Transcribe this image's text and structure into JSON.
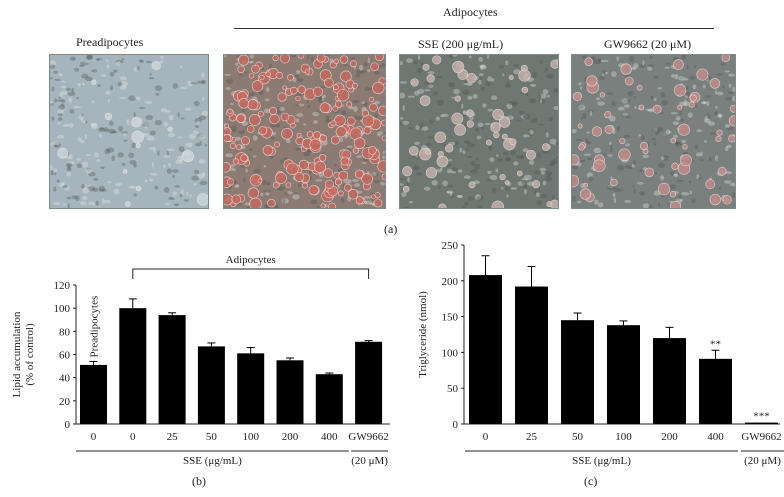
{
  "figure": {
    "panel_a": {
      "header": "Adipocytes",
      "labels": [
        "Preadipocytes",
        "SSE (200 μg/mL)",
        "GW9662 (20 μM)"
      ],
      "caption": "(a)",
      "images": [
        {
          "name": "preadipocytes-micrograph",
          "tint": "#a6b4bd",
          "stain": "#cfd8e0",
          "stain_density": 0.05
        },
        {
          "name": "adipocytes-micrograph",
          "tint": "#8b7b73",
          "stain": "#c8695f",
          "stain_density": 0.75
        },
        {
          "name": "sse-200-micrograph",
          "tint": "#6e7772",
          "stain": "#c9b2ad",
          "stain_density": 0.18
        },
        {
          "name": "gw9662-micrograph",
          "tint": "#7a807e",
          "stain": "#c48c88",
          "stain_density": 0.22
        }
      ]
    },
    "panel_b": {
      "caption": "(b)"
    },
    "panel_c": {
      "caption": "(c)"
    }
  },
  "chart_data": [
    {
      "type": "bar",
      "title": "",
      "ylabel": "Lipid accumulation (% of control)",
      "ylabel_lines": [
        "Lipid accumulation",
        "(% of control)"
      ],
      "ylim": [
        0,
        120
      ],
      "yticks": [
        0,
        20,
        40,
        60,
        80,
        100,
        120
      ],
      "categories": [
        "0",
        "0",
        "25",
        "50",
        "100",
        "200",
        "400",
        "GW9662"
      ],
      "values": [
        51,
        100,
        94,
        67,
        61,
        55,
        43,
        71
      ],
      "errors": [
        3,
        8,
        2,
        3,
        5,
        2,
        1,
        1
      ],
      "bar_annotation": {
        "index": 0,
        "text": "Preadipocytes"
      },
      "bracket": {
        "from": 1,
        "to": 7,
        "label": "Adipocytes"
      },
      "group_labels": [
        {
          "text": "SSE (μg/mL)",
          "from": 0,
          "to": 6
        },
        {
          "text": "(20 μM)",
          "from": 7,
          "to": 7
        }
      ],
      "color": "#000000"
    },
    {
      "type": "bar",
      "title": "",
      "ylabel": "Triglyceride (nmol)",
      "ylim": [
        0,
        250
      ],
      "yticks": [
        0,
        50,
        100,
        150,
        200,
        250
      ],
      "categories": [
        "0",
        "25",
        "50",
        "100",
        "200",
        "400",
        "GW9662"
      ],
      "values": [
        208,
        192,
        145,
        138,
        120,
        91,
        2
      ],
      "errors": [
        27,
        28,
        10,
        6,
        15,
        12,
        0
      ],
      "significance": [
        "",
        "",
        "",
        "",
        "",
        "**",
        "***"
      ],
      "group_labels": [
        {
          "text": "SSE (μg/mL)",
          "from": 0,
          "to": 5
        },
        {
          "text": "(20 μM)",
          "from": 6,
          "to": 6
        }
      ],
      "color": "#000000"
    }
  ]
}
